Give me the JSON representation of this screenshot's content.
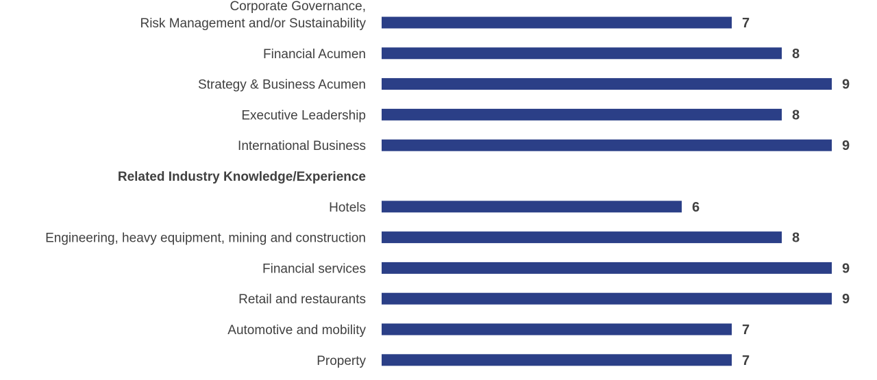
{
  "chart_data": {
    "type": "bar",
    "orientation": "horizontal",
    "bar_color": "#2b3f87",
    "text_color": "#404040",
    "categories": [
      "Corporate Governance,\nRisk Management and/or Sustainability",
      "Financial Acumen",
      "Strategy & Business Acumen",
      "Executive Leadership",
      "International Business",
      "Related Industry Knowledge/Experience",
      "Hotels",
      "Engineering, heavy equipment, mining and construction",
      "Financial services",
      "Retail and restaurants",
      "Automotive and mobility",
      "Property"
    ],
    "values": [
      7,
      8,
      9,
      8,
      9,
      null,
      6,
      8,
      9,
      9,
      7,
      7
    ],
    "data_labels": [
      "7",
      "8",
      "9",
      "8",
      "9",
      "",
      "6",
      "8",
      "9",
      "9",
      "7",
      "7"
    ],
    "section_headings": [
      "Related Industry Knowledge/Experience"
    ],
    "xlim": [
      0,
      9
    ],
    "axes_visible": false,
    "grid": false,
    "legend": "none"
  }
}
